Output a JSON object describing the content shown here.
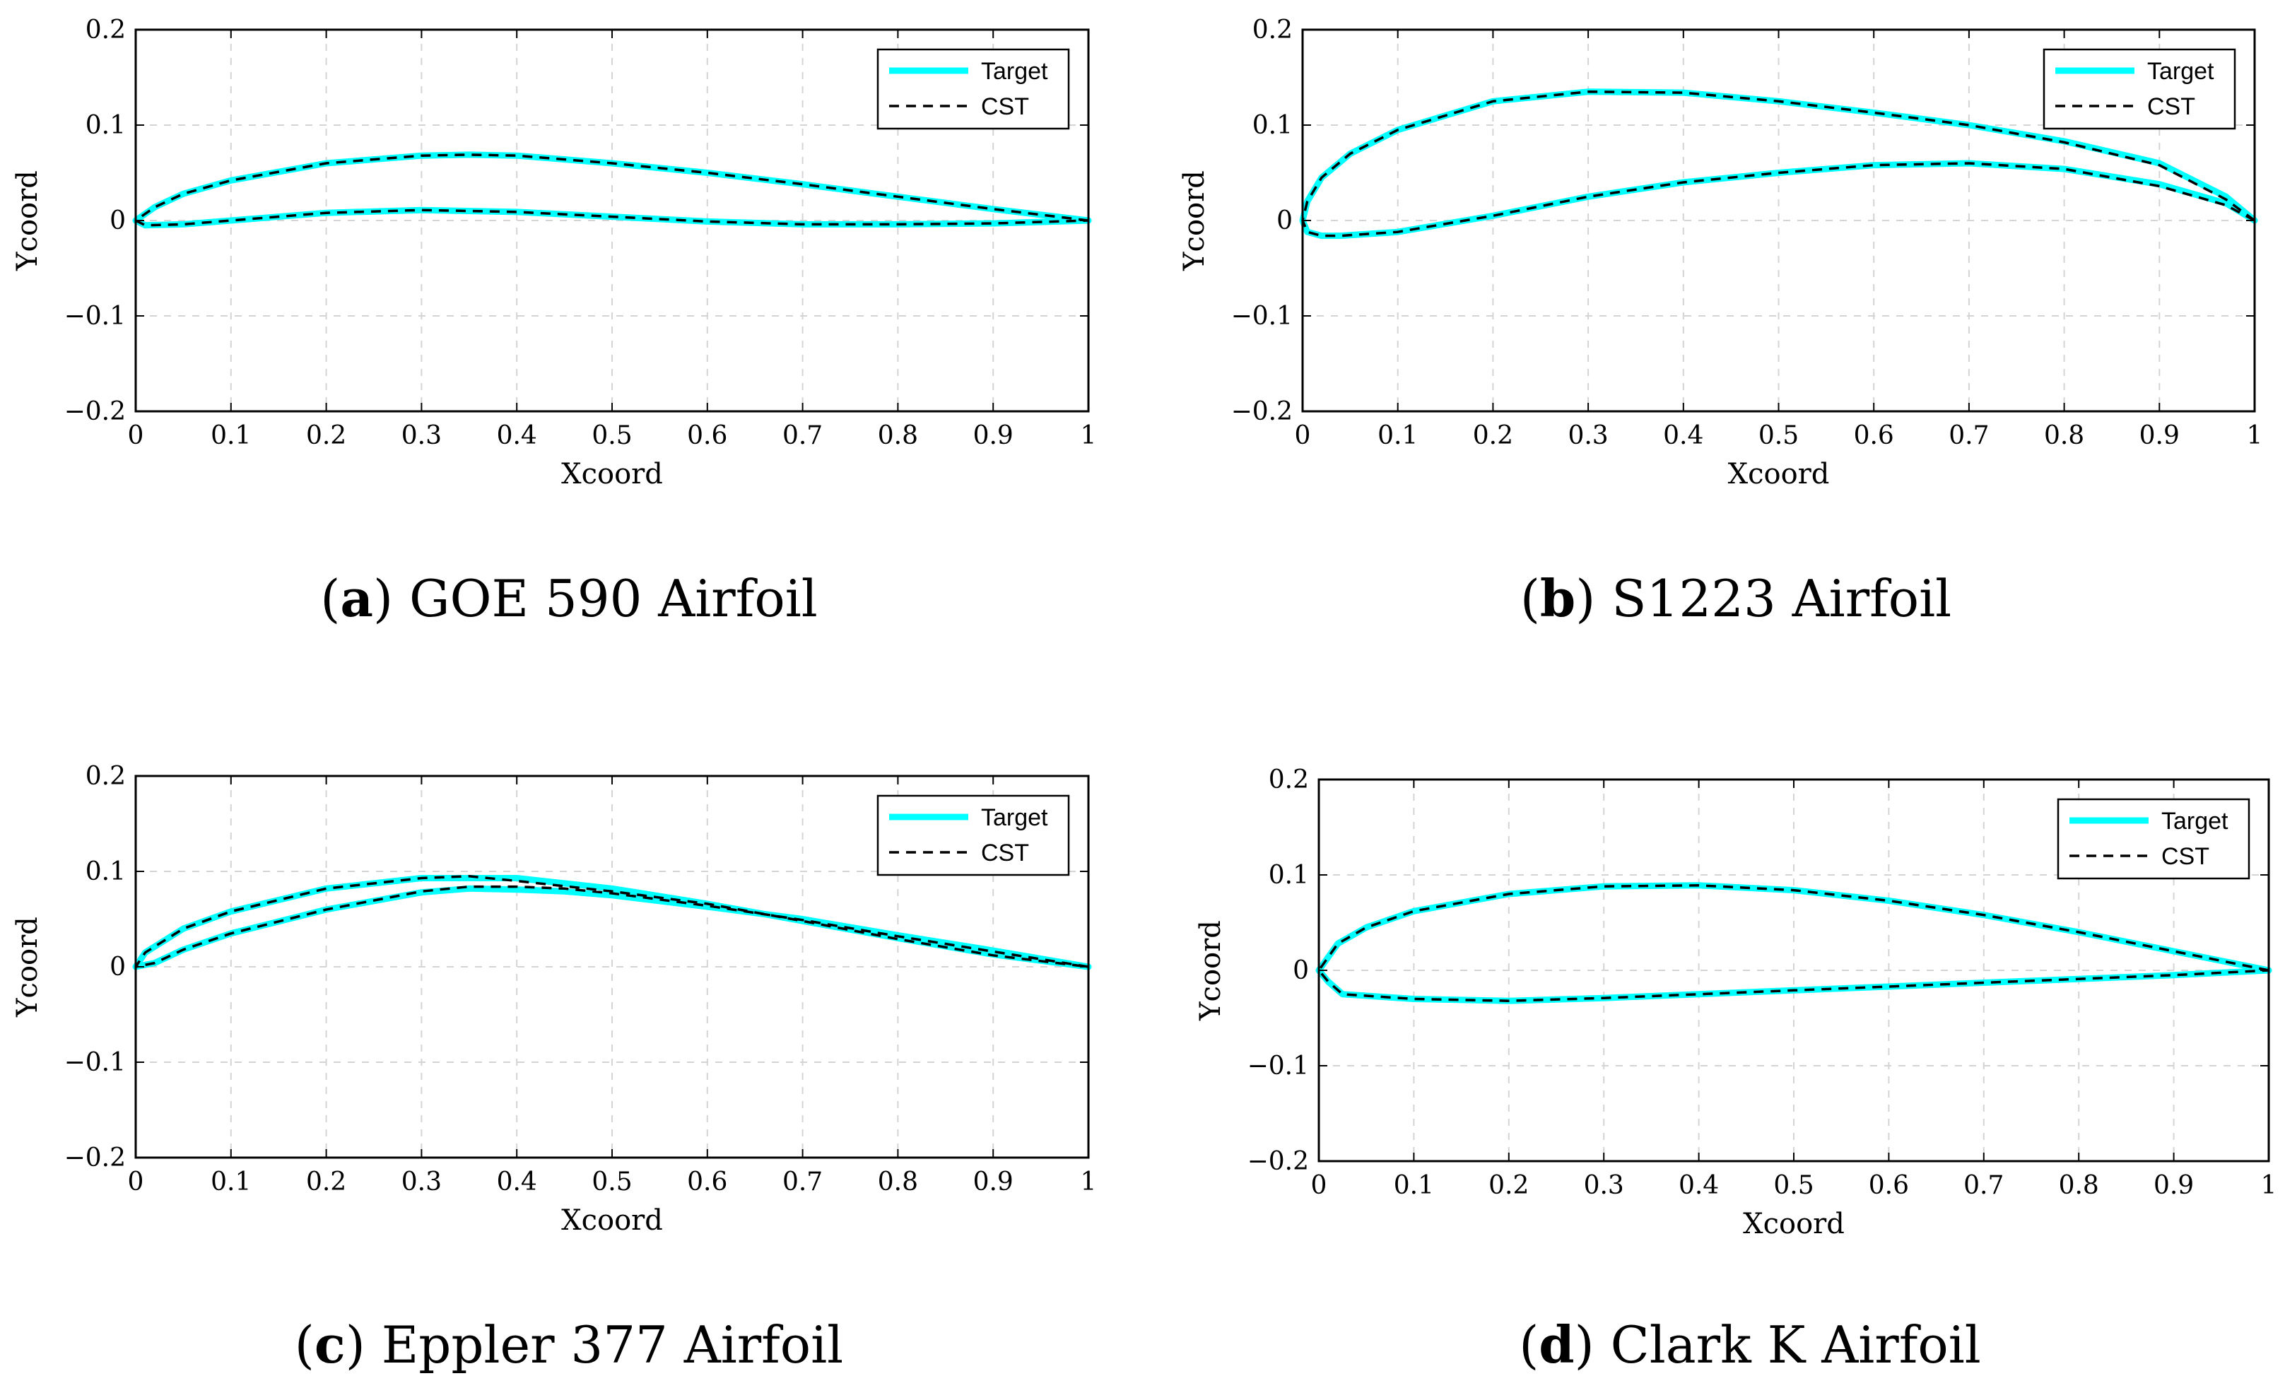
{
  "chart_data": [
    {
      "type": "line",
      "panel_label": "a",
      "caption": "GOE 590 Airfoil",
      "xlabel": "Xcoord",
      "ylabel": "Ycoord",
      "xlim": [
        0,
        1
      ],
      "ylim": [
        -0.2,
        0.2
      ],
      "xticks": [
        0,
        0.1,
        0.2,
        0.3,
        0.4,
        0.5,
        0.6,
        0.7,
        0.8,
        0.9,
        1
      ],
      "xtick_labels": [
        "0",
        "0.1",
        "0.2",
        "0.3",
        "0.4",
        "0.5",
        "0.6",
        "0.7",
        "0.8",
        "0.9",
        "1"
      ],
      "yticks": [
        -0.2,
        -0.1,
        0,
        0.1,
        0.2
      ],
      "ytick_labels": [
        "−0.2",
        "−0.1",
        "0",
        "0.1",
        "0.2"
      ],
      "grid": true,
      "legend_position": "top-right",
      "series": [
        {
          "name": "Target",
          "color": "#00ffff",
          "style": "solid",
          "x": [
            1,
            0.9,
            0.8,
            0.7,
            0.6,
            0.5,
            0.4,
            0.35,
            0.3,
            0.2,
            0.1,
            0.05,
            0.02,
            0,
            0.01,
            0.05,
            0.1,
            0.2,
            0.3,
            0.4,
            0.5,
            0.6,
            0.7,
            0.8,
            0.9,
            1
          ],
          "y": [
            0,
            0.012,
            0.025,
            0.038,
            0.05,
            0.06,
            0.068,
            0.069,
            0.068,
            0.06,
            0.042,
            0.028,
            0.014,
            0,
            -0.005,
            -0.004,
            0,
            0.008,
            0.011,
            0.009,
            0.004,
            -0.001,
            -0.004,
            -0.004,
            -0.003,
            0
          ]
        },
        {
          "name": "CST",
          "color": "#000000",
          "style": "dashed",
          "x": [
            1,
            0.9,
            0.8,
            0.7,
            0.6,
            0.5,
            0.4,
            0.35,
            0.3,
            0.2,
            0.1,
            0.05,
            0.02,
            0,
            0.01,
            0.05,
            0.1,
            0.2,
            0.3,
            0.4,
            0.5,
            0.6,
            0.7,
            0.8,
            0.9,
            1
          ],
          "y": [
            0,
            0.012,
            0.025,
            0.038,
            0.05,
            0.06,
            0.068,
            0.069,
            0.068,
            0.06,
            0.042,
            0.028,
            0.014,
            0,
            -0.005,
            -0.004,
            0,
            0.008,
            0.011,
            0.009,
            0.004,
            -0.001,
            -0.004,
            -0.004,
            -0.003,
            0
          ]
        }
      ]
    },
    {
      "type": "line",
      "panel_label": "b",
      "caption": "S1223 Airfoil",
      "xlabel": "Xcoord",
      "ylabel": "Ycoord",
      "xlim": [
        0,
        1
      ],
      "ylim": [
        -0.2,
        0.2
      ],
      "xticks": [
        0,
        0.1,
        0.2,
        0.3,
        0.4,
        0.5,
        0.6,
        0.7,
        0.8,
        0.9,
        1
      ],
      "xtick_labels": [
        "0",
        "0.1",
        "0.2",
        "0.3",
        "0.4",
        "0.5",
        "0.6",
        "0.7",
        "0.8",
        "0.9",
        "1"
      ],
      "yticks": [
        -0.2,
        -0.1,
        0,
        0.1,
        0.2
      ],
      "ytick_labels": [
        "−0.2",
        "−0.1",
        "0",
        "0.1",
        "0.2"
      ],
      "grid": true,
      "legend_position": "top-right",
      "series": [
        {
          "name": "Target",
          "color": "#00ffff",
          "style": "solid",
          "x": [
            1,
            0.97,
            0.9,
            0.8,
            0.7,
            0.6,
            0.5,
            0.4,
            0.3,
            0.2,
            0.1,
            0.05,
            0.02,
            0.005,
            0,
            0.005,
            0.02,
            0.04,
            0.1,
            0.2,
            0.3,
            0.4,
            0.5,
            0.6,
            0.7,
            0.8,
            0.9,
            0.97,
            1
          ],
          "y": [
            0,
            0.025,
            0.06,
            0.083,
            0.1,
            0.113,
            0.125,
            0.134,
            0.135,
            0.125,
            0.095,
            0.07,
            0.045,
            0.02,
            0,
            -0.012,
            -0.016,
            -0.016,
            -0.012,
            0.005,
            0.025,
            0.04,
            0.05,
            0.058,
            0.06,
            0.054,
            0.038,
            0.018,
            0
          ]
        },
        {
          "name": "CST",
          "color": "#000000",
          "style": "dashed",
          "x": [
            1,
            0.97,
            0.9,
            0.8,
            0.7,
            0.6,
            0.5,
            0.4,
            0.3,
            0.2,
            0.1,
            0.05,
            0.02,
            0.005,
            0,
            0.005,
            0.02,
            0.04,
            0.1,
            0.2,
            0.3,
            0.4,
            0.5,
            0.6,
            0.7,
            0.8,
            0.9,
            0.97,
            1
          ],
          "y": [
            0,
            0.022,
            0.058,
            0.082,
            0.1,
            0.113,
            0.125,
            0.134,
            0.135,
            0.125,
            0.095,
            0.07,
            0.045,
            0.02,
            0,
            -0.012,
            -0.016,
            -0.016,
            -0.012,
            0.005,
            0.025,
            0.04,
            0.05,
            0.058,
            0.06,
            0.054,
            0.036,
            0.016,
            0
          ]
        }
      ]
    },
    {
      "type": "line",
      "panel_label": "c",
      "caption": "Eppler 377 Airfoil",
      "xlabel": "Xcoord",
      "ylabel": "Ycoord",
      "xlim": [
        0,
        1
      ],
      "ylim": [
        -0.2,
        0.2
      ],
      "xticks": [
        0,
        0.1,
        0.2,
        0.3,
        0.4,
        0.5,
        0.6,
        0.7,
        0.8,
        0.9,
        1
      ],
      "xtick_labels": [
        "0",
        "0.1",
        "0.2",
        "0.3",
        "0.4",
        "0.5",
        "0.6",
        "0.7",
        "0.8",
        "0.9",
        "1"
      ],
      "yticks": [
        -0.2,
        -0.1,
        0,
        0.1,
        0.2
      ],
      "ytick_labels": [
        "−0.2",
        "−0.1",
        "0",
        "0.1",
        "0.2"
      ],
      "grid": true,
      "legend_position": "top-right",
      "series": [
        {
          "name": "Target",
          "color": "#00ffff",
          "style": "solid",
          "x": [
            1,
            0.9,
            0.8,
            0.7,
            0.6,
            0.5,
            0.45,
            0.4,
            0.35,
            0.3,
            0.2,
            0.1,
            0.05,
            0.02,
            0,
            0.01,
            0.05,
            0.1,
            0.2,
            0.3,
            0.4,
            0.5,
            0.6,
            0.7,
            0.8,
            0.9,
            1
          ],
          "y": [
            0,
            0.017,
            0.033,
            0.05,
            0.063,
            0.075,
            0.079,
            0.081,
            0.082,
            0.078,
            0.06,
            0.035,
            0.018,
            0.004,
            0,
            0.015,
            0.04,
            0.058,
            0.082,
            0.093,
            0.093,
            0.082,
            0.066,
            0.048,
            0.03,
            0.013,
            0
          ]
        },
        {
          "name": "CST",
          "color": "#000000",
          "style": "dashed",
          "x": [
            1,
            0.9,
            0.8,
            0.7,
            0.6,
            0.5,
            0.45,
            0.4,
            0.35,
            0.3,
            0.2,
            0.1,
            0.05,
            0.02,
            0,
            0.01,
            0.05,
            0.1,
            0.2,
            0.3,
            0.35,
            0.4,
            0.5,
            0.6,
            0.7,
            0.8,
            0.9,
            1
          ],
          "y": [
            0,
            0.016,
            0.032,
            0.049,
            0.064,
            0.077,
            0.082,
            0.084,
            0.084,
            0.079,
            0.06,
            0.035,
            0.018,
            0.004,
            0,
            0.015,
            0.04,
            0.058,
            0.082,
            0.093,
            0.095,
            0.09,
            0.079,
            0.066,
            0.048,
            0.029,
            0.012,
            0
          ]
        }
      ]
    },
    {
      "type": "line",
      "panel_label": "d",
      "caption": "Clark K Airfoil",
      "xlabel": "Xcoord",
      "ylabel": "Ycoord",
      "xlim": [
        0,
        1
      ],
      "ylim": [
        -0.2,
        0.2
      ],
      "xticks": [
        0,
        0.1,
        0.2,
        0.3,
        0.4,
        0.5,
        0.6,
        0.7,
        0.8,
        0.9,
        1
      ],
      "xtick_labels": [
        "0",
        "0.1",
        "0.2",
        "0.3",
        "0.4",
        "0.5",
        "0.6",
        "0.7",
        "0.8",
        "0.9",
        "1"
      ],
      "yticks": [
        -0.2,
        -0.1,
        0,
        0.1,
        0.2
      ],
      "ytick_labels": [
        "−0.2",
        "−0.1",
        "0",
        "0.1",
        "0.2"
      ],
      "grid": true,
      "legend_position": "top-right",
      "series": [
        {
          "name": "Target",
          "color": "#00ffff",
          "style": "solid",
          "x": [
            1,
            0.9,
            0.8,
            0.7,
            0.6,
            0.5,
            0.4,
            0.3,
            0.2,
            0.1,
            0.05,
            0.02,
            0,
            0.01,
            0.025,
            0.1,
            0.2,
            0.3,
            0.4,
            0.5,
            0.6,
            0.7,
            0.8,
            0.9,
            1
          ],
          "y": [
            0,
            0.02,
            0.04,
            0.058,
            0.073,
            0.084,
            0.089,
            0.088,
            0.08,
            0.062,
            0.045,
            0.028,
            0,
            -0.012,
            -0.025,
            -0.03,
            -0.032,
            -0.029,
            -0.025,
            -0.021,
            -0.017,
            -0.013,
            -0.009,
            -0.005,
            0
          ]
        },
        {
          "name": "CST",
          "color": "#000000",
          "style": "dashed",
          "x": [
            1,
            0.9,
            0.8,
            0.7,
            0.6,
            0.5,
            0.4,
            0.3,
            0.2,
            0.1,
            0.05,
            0.02,
            0,
            0.01,
            0.025,
            0.1,
            0.2,
            0.3,
            0.4,
            0.5,
            0.6,
            0.7,
            0.8,
            0.9,
            1
          ],
          "y": [
            0,
            0.02,
            0.04,
            0.058,
            0.073,
            0.084,
            0.089,
            0.088,
            0.08,
            0.062,
            0.045,
            0.028,
            0,
            -0.012,
            -0.025,
            -0.03,
            -0.032,
            -0.029,
            -0.025,
            -0.021,
            -0.017,
            -0.013,
            -0.009,
            -0.005,
            0
          ]
        }
      ]
    }
  ]
}
